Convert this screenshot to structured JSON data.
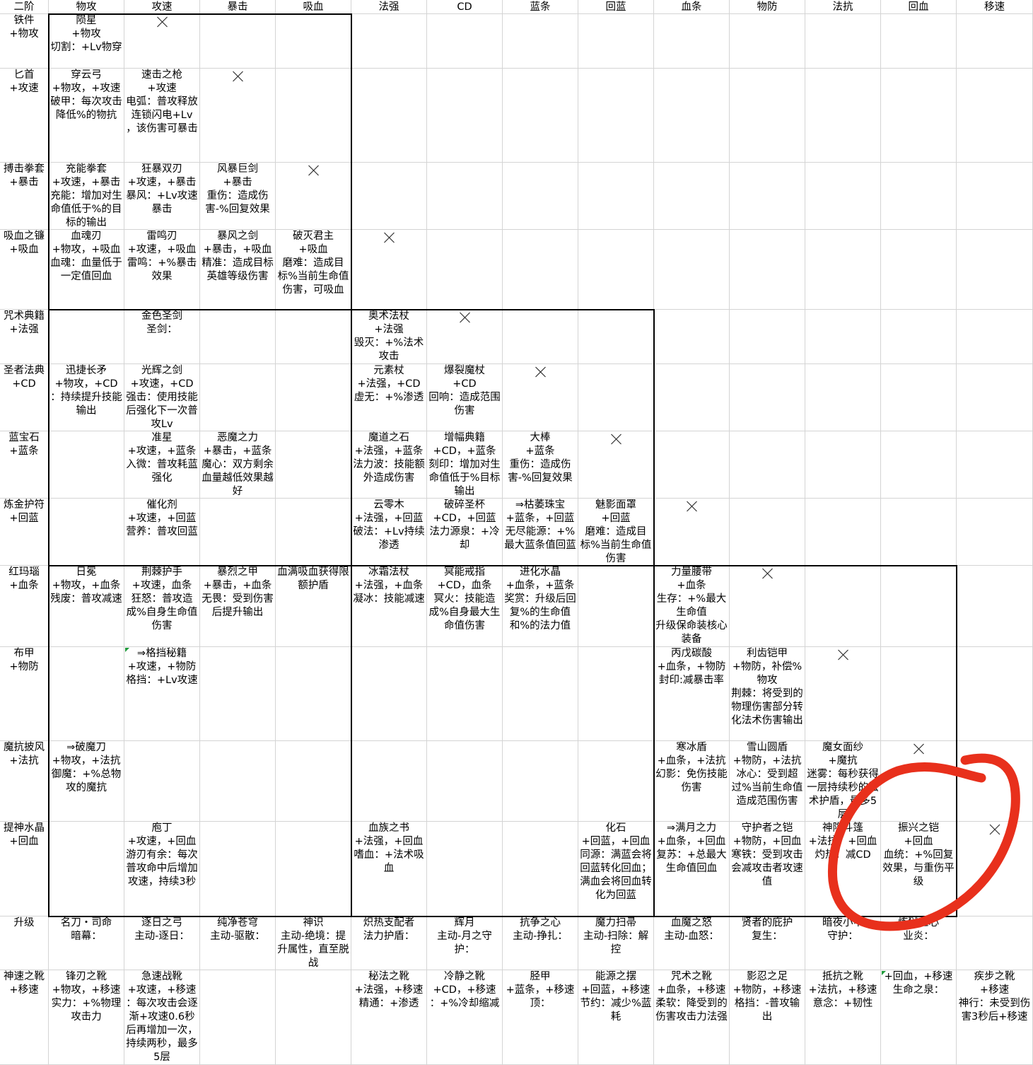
{
  "header": [
    "二阶",
    "物攻",
    "攻速",
    "暴击",
    "吸血",
    "法强",
    "CD",
    "蓝条",
    "回蓝",
    "血条",
    "物防",
    "法抗",
    "回血",
    "移速"
  ],
  "rows": [
    {
      "label": [
        "铁件",
        "+物攻"
      ],
      "cells": [
        [
          "陨星",
          "+物攻",
          "切割：+Lv物穿"
        ],
        [],
        [],
        [],
        [],
        [],
        [],
        [],
        [],
        [],
        [],
        [],
        []
      ]
    },
    {
      "label": [
        "匕首",
        "+攻速"
      ],
      "cells": [
        [
          "穿云弓",
          "+物攻，+攻速",
          "破甲：每次攻击降低%的物抗"
        ],
        [
          "速击之枪",
          "+攻速",
          "电弧：普攻释放连锁闪电+Lv",
          "，该伤害可暴击"
        ],
        [],
        [],
        [],
        [],
        [],
        [],
        [],
        [],
        [],
        [],
        []
      ]
    },
    {
      "label": [
        "搏击拳套",
        "+暴击"
      ],
      "cells": [
        [
          "充能拳套",
          "+攻速，+暴击",
          "充能：增加对生命值低于%的目标的输出"
        ],
        [
          "狂暴双刃",
          "+攻速，+暴击",
          "暴风：+Lv攻速暴击"
        ],
        [
          "风暴巨剑",
          "+暴击",
          "重伤：造成伤害-%回复效果"
        ],
        [],
        [],
        [],
        [],
        [],
        [],
        [],
        [],
        [],
        []
      ]
    },
    {
      "label": [
        "吸血之镰",
        "+吸血"
      ],
      "cells": [
        [
          "血魂刃",
          "+物攻，+吸血",
          "血魂：血量低于一定值回血"
        ],
        [
          "雷鸣刃",
          "+攻速，+吸血",
          "雷鸣：+%暴击效果"
        ],
        [
          "暴风之剑",
          "+暴击，+吸血",
          "精准：造成目标英雄等级伤害"
        ],
        [
          "破灭君主",
          "+吸血",
          "磨难：造成目标%当前生命值伤害，可吸血"
        ],
        [],
        [],
        [],
        [],
        [],
        [],
        [],
        [],
        []
      ]
    },
    {
      "label": [
        "咒术典籍",
        "+法强"
      ],
      "cells": [
        [],
        [
          "金色圣剑",
          "圣剑："
        ],
        [],
        [],
        [
          "奥术法杖",
          "+法强",
          "毁灭：+%法术攻击"
        ],
        [],
        [],
        [],
        [],
        [],
        [],
        [],
        []
      ]
    },
    {
      "label": [
        "圣者法典",
        "+CD"
      ],
      "cells": [
        [
          "迅捷长矛",
          "+物攻，+CD",
          "：持续提升技能输出"
        ],
        [
          "光辉之剑",
          "+攻速，+CD",
          "强击：使用技能后强化下一次普攻Lv"
        ],
        [],
        [],
        [
          "元素杖",
          "+法强，+CD",
          "虚无：+%渗透"
        ],
        [
          "爆裂魔杖",
          "+CD",
          "回响：造成范围伤害"
        ],
        [],
        [],
        [],
        [],
        [],
        [],
        []
      ]
    },
    {
      "label": [
        "蓝宝石",
        "+蓝条"
      ],
      "cells": [
        [],
        [
          "准星",
          "+攻速，+蓝条",
          "入微：普攻耗蓝强化"
        ],
        [
          "恶魔之力",
          "+暴击，+蓝条",
          "魔心：双方剩余血量越低效果越好"
        ],
        [],
        [
          "魔道之石",
          "+法强，+蓝条",
          "法力波：技能额外造成伤害"
        ],
        [
          "增幅典籍",
          "+CD，+蓝条",
          "刻印：增加对生命值低于%目标输出"
        ],
        [
          "大棒",
          "+蓝条",
          "重伤：造成伤害-%回复效果"
        ],
        [],
        [],
        [],
        [],
        [],
        []
      ]
    },
    {
      "label": [
        "炼金护符",
        "+回蓝"
      ],
      "cells": [
        [],
        [
          "催化剂",
          "+攻速，+回蓝",
          "营养：普攻回蓝"
        ],
        [],
        [],
        [
          "云零木",
          "+法强，+回蓝",
          "破法：+Lv持续渗透"
        ],
        [
          "破碎圣杯",
          "+CD，+回蓝",
          "法力源泉：+冷却"
        ],
        [
          "⇒枯萎珠宝",
          "+蓝条，+回蓝",
          "无尽能源：+%最大蓝条值回蓝"
        ],
        [
          "魅影面罩",
          "+回蓝",
          "磨难：造成目标%当前生命值伤害"
        ],
        [],
        [],
        [],
        [],
        []
      ]
    },
    {
      "label": [
        "红玛瑙",
        "+血条"
      ],
      "cells": [
        [
          "日冕",
          "+物攻，+血条",
          "残废：普攻减速"
        ],
        [
          "荆棘护手",
          "+攻速，血条",
          "狂怒：普攻造成%自身生命值伤害"
        ],
        [
          "暴烈之甲",
          "+暴击，+血条",
          "无畏：受到伤害后提升输出"
        ],
        [
          "血满吸血获得限额护盾"
        ],
        [
          "冰霜法杖",
          "+法强，+血条",
          "凝冰：技能减速"
        ],
        [
          "冥能戒指",
          "+CD，血条",
          "冥火：技能造成%自身最大生命值伤害"
        ],
        [
          "进化水晶",
          "+血条，+蓝条",
          "奖赏：升级后回复%的生命值和%的法力值"
        ],
        [],
        [
          "力量腰带",
          "+血条",
          "生存：+%最大生命值",
          "升级保命装核心装备"
        ],
        [],
        [],
        [],
        []
      ]
    },
    {
      "label": [
        "布甲",
        "+物防"
      ],
      "cells": [
        [],
        [
          "⇒格挡秘籍",
          "+攻速，+物防",
          "格挡：+Lv攻速"
        ],
        [],
        [],
        [],
        [],
        [],
        [],
        [
          "丙戊碳酸",
          "+血条，+物防",
          "封印:减暴击率"
        ],
        [
          "利齿铠甲",
          "+物防，补偿%物攻",
          "荆棘：将受到的物理伤害部分转化法术伤害输出"
        ],
        [],
        [],
        []
      ]
    },
    {
      "label": [
        "魔抗披风",
        "+法抗"
      ],
      "cells": [
        [
          "⇒破魔刀",
          "+物攻，+法抗",
          "御魔：+%总物攻的魔抗"
        ],
        [],
        [],
        [],
        [],
        [],
        [],
        [],
        [
          "寒冰盾",
          "+血条，+法抗",
          "幻影：免伤技能伤害"
        ],
        [
          "雪山圆盾",
          "+物防，+法抗",
          "冰心：受到超过%当前生命值造成范围伤害"
        ],
        [
          "魔女面纱",
          "+魔抗",
          "迷雾：每秒获得一层持续秒的法术护盾，最多5层"
        ],
        [],
        []
      ]
    },
    {
      "label": [
        "提神水晶",
        "+回血"
      ],
      "cells": [
        [],
        [
          "庖丁",
          "+攻速，+回血",
          "游刃有余：每次普攻命中后增加攻速，持续3秒"
        ],
        [],
        [],
        [
          "血族之书",
          "+法强，+回血",
          "嗜血：+法术吸血"
        ],
        [],
        [],
        [
          "化石",
          "+回蓝，+回血",
          "同源：满蓝会将回蓝转化回血；满血会将回血转化为回蓝"
        ],
        [
          "⇒满月之力",
          "+血条，+回血",
          "复苏：+总最大生命值回血"
        ],
        [
          "守护者之铠",
          "+物防，+回血",
          "寒铁：受到攻击会减攻击者攻速值"
        ],
        [
          "神隐斗篷",
          "+法抗，+回血",
          "灼热：减CD"
        ],
        [
          "振兴之铠",
          "+回血",
          "血统：+%回复效果，与重伤平级"
        ],
        []
      ]
    },
    {
      "label": [
        "升级"
      ],
      "cells": [
        [
          "名刀・司命",
          "暗幕："
        ],
        [
          "逐日之弓",
          "主动-逐日："
        ],
        [
          "纯净苍穹",
          "主动-驱散："
        ],
        [
          "神识",
          "主动-绝境：提升属性，直至脱战"
        ],
        [
          "炽热支配者",
          "法力护盾："
        ],
        [
          "辉月",
          "主动-月之守护："
        ],
        [
          "抗争之心",
          "主动-挣扎："
        ],
        [
          "魔力扫帚",
          "主动-扫除：解控"
        ],
        [
          "血魔之怒",
          "主动-血怒："
        ],
        [
          "贤者的庇护",
          "复生："
        ],
        [
          "暗夜小甲",
          "守护："
        ],
        [
          "炼狱之心",
          "业炎："
        ],
        []
      ]
    },
    {
      "label": [
        "神速之靴",
        "+移速"
      ],
      "cells": [
        [
          "锋刃之靴",
          "+物攻，+移速",
          "实力：+%物理攻击力"
        ],
        [
          "急速战靴",
          "+攻速，+移速",
          "：每次攻击会逐渐+攻速0.6秒后再增加一次，持续两秒，最多5层"
        ],
        [],
        [],
        [
          "秘法之靴",
          "+法强，+移速",
          "精通：+渗透"
        ],
        [
          "冷静之靴",
          "+CD，+移速",
          "：+%冷却缩减"
        ],
        [
          "胫甲",
          "+蓝条，+移速",
          "顶："
        ],
        [
          "能源之摆",
          "+回蓝，+移速",
          "节约：减少%蓝耗"
        ],
        [
          "咒术之靴",
          "+血条，+移速",
          "柔软：降受到的伤害攻击力法强"
        ],
        [
          "影忍之足",
          "+物防，+移速",
          "格挡：-普攻输出"
        ],
        [
          "抵抗之靴",
          "+法抗，+移速",
          "意念：+韧性"
        ],
        [
          "+回血，+移速",
          "生命之泉："
        ],
        [
          "疾步之靴",
          "+移速",
          "神行：未受到伤害3秒后+移速"
        ]
      ]
    }
  ]
}
